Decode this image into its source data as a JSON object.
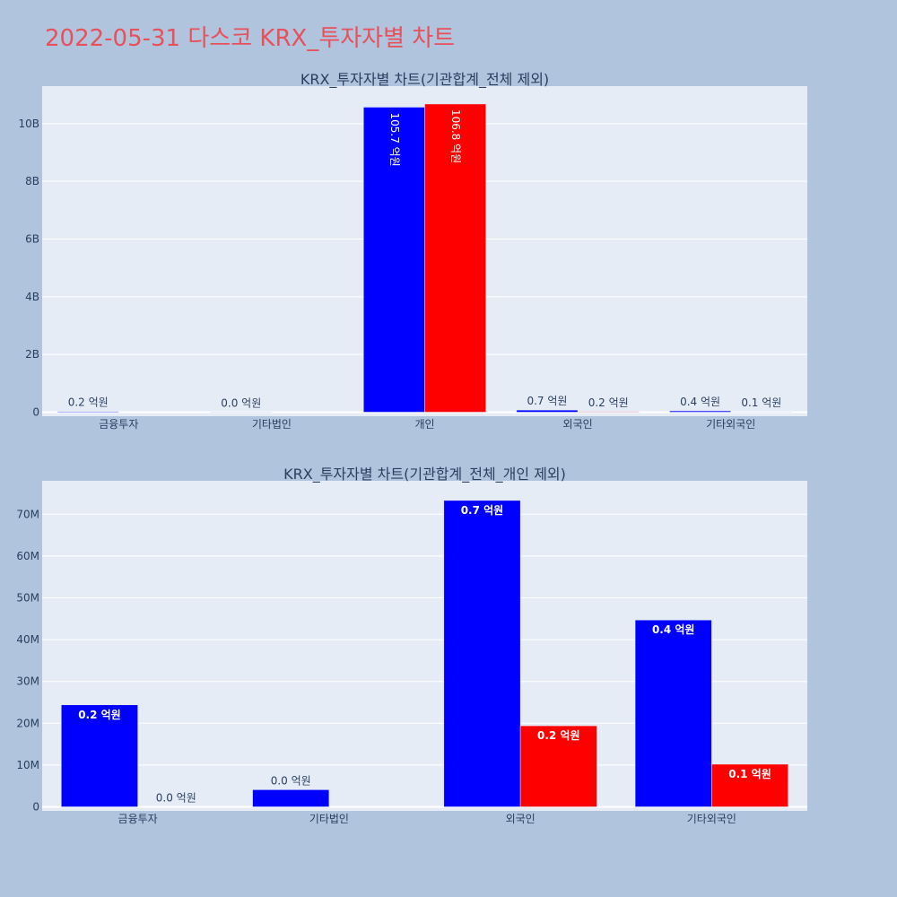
{
  "page_title": "2022-05-31 다스코 KRX_투자자별 차트",
  "colors": {
    "background": "#b0c4de",
    "plot_bg": "#e5ecf6",
    "buy": "#0000ff",
    "sell": "#ff0000",
    "title": "#e8505b",
    "text": "#2a3f5f"
  },
  "chart_data": [
    {
      "type": "bar",
      "title": "KRX_투자자별 차트(기관합계_전체 제외)",
      "categories": [
        "금융투자",
        "기타법인",
        "개인",
        "외국인",
        "기타외국인"
      ],
      "ylim": [
        0,
        11300000000
      ],
      "ytick_values": [
        0,
        2000000000,
        4000000000,
        6000000000,
        8000000000,
        10000000000
      ],
      "ytick_labels": [
        "0",
        "2B",
        "4B",
        "6B",
        "8B",
        "10B"
      ],
      "grid": true,
      "series": [
        {
          "color": "#0000ff",
          "values": [
            24400000,
            4100000,
            10570000000,
            73300000,
            44700000
          ],
          "labels": [
            "0.2 억원",
            "0.0 억원",
            "105.7 억원",
            "0.7 억원",
            "0.4 억원"
          ]
        },
        {
          "color": "#ff0000",
          "values": [
            0,
            0,
            10680000000,
            19400000,
            10200000
          ],
          "labels": [
            "",
            "",
            "106.8 억원",
            "0.2 억원",
            "0.1 억원"
          ]
        }
      ]
    },
    {
      "type": "bar",
      "title": "KRX_투자자별 차트(기관합계_전체_개인 제외)",
      "categories": [
        "금융투자",
        "기타법인",
        "외국인",
        "기타외국인"
      ],
      "ylim": [
        0,
        78000000
      ],
      "ytick_values": [
        0,
        10000000,
        20000000,
        30000000,
        40000000,
        50000000,
        60000000,
        70000000
      ],
      "ytick_labels": [
        "0",
        "10M",
        "20M",
        "30M",
        "40M",
        "50M",
        "60M",
        "70M"
      ],
      "grid": true,
      "series": [
        {
          "color": "#0000ff",
          "values": [
            24400000,
            4100000,
            73300000,
            44700000
          ],
          "labels": [
            "0.2 억원",
            "0.0 억원",
            "0.7 억원",
            "0.4 억원"
          ]
        },
        {
          "color": "#ff0000",
          "values": [
            0,
            0,
            19400000,
            10200000
          ],
          "labels": [
            "0.0 억원",
            "",
            "0.2 억원",
            "0.1 억원"
          ]
        }
      ]
    }
  ]
}
